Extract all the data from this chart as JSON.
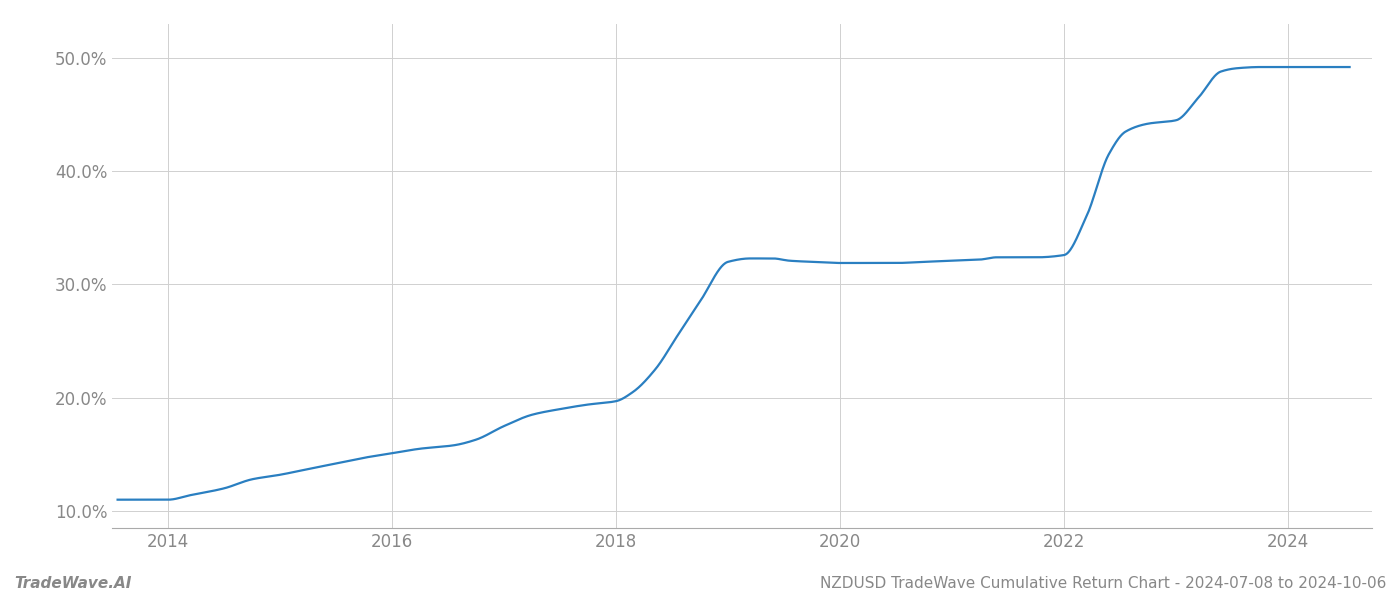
{
  "footer_left": "TradeWave.AI",
  "footer_right": "NZDUSD TradeWave Cumulative Return Chart - 2024-07-08 to 2024-10-06",
  "line_color": "#2a7fc1",
  "line_width": 1.6,
  "background_color": "#ffffff",
  "grid_color": "#d0d0d0",
  "x_values": [
    2013.55,
    2014.0,
    2014.2,
    2014.5,
    2014.75,
    2015.0,
    2015.25,
    2015.5,
    2015.75,
    2016.0,
    2016.25,
    2016.55,
    2016.75,
    2017.0,
    2017.25,
    2017.5,
    2017.75,
    2018.0,
    2018.15,
    2018.35,
    2018.55,
    2018.75,
    2019.0,
    2019.2,
    2019.4,
    2019.55,
    2019.75,
    2020.0,
    2020.25,
    2020.5,
    2020.75,
    2021.0,
    2021.25,
    2021.4,
    2021.55,
    2021.75,
    2022.0,
    2022.2,
    2022.4,
    2022.55,
    2022.75,
    2023.0,
    2023.2,
    2023.4,
    2023.55,
    2023.75,
    2024.0,
    2024.25,
    2024.55
  ],
  "y_values": [
    11.0,
    11.0,
    11.4,
    12.0,
    12.8,
    13.2,
    13.7,
    14.2,
    14.7,
    15.1,
    15.5,
    15.8,
    16.3,
    17.5,
    18.5,
    19.0,
    19.4,
    19.7,
    20.5,
    22.5,
    25.5,
    28.5,
    32.0,
    32.3,
    32.3,
    32.1,
    32.0,
    31.9,
    31.9,
    31.9,
    32.0,
    32.1,
    32.2,
    32.4,
    32.4,
    32.4,
    32.6,
    36.0,
    41.5,
    43.5,
    44.2,
    44.5,
    46.5,
    48.8,
    49.1,
    49.2,
    49.2,
    49.2,
    49.2
  ],
  "xlim": [
    2013.5,
    2024.75
  ],
  "ylim": [
    8.5,
    53.0
  ],
  "yticks": [
    10.0,
    20.0,
    30.0,
    40.0,
    50.0
  ],
  "xticks": [
    2014,
    2016,
    2018,
    2020,
    2022,
    2024
  ],
  "tick_color": "#888888",
  "tick_fontsize": 12,
  "footer_fontsize": 11
}
